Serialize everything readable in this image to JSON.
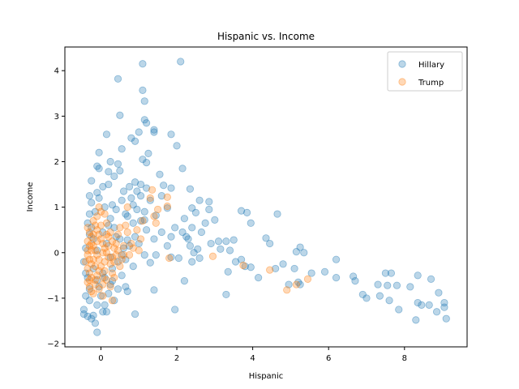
{
  "chart_data": {
    "type": "scatter",
    "title": "Hispanic vs. Income",
    "xlabel": "Hispanic",
    "ylabel": "Income",
    "xlim": [
      -0.95,
      9.65
    ],
    "ylim": [
      -2.07,
      4.52
    ],
    "xticks": [
      0,
      2,
      4,
      6,
      8
    ],
    "yticks": [
      -2,
      -1,
      0,
      1,
      2,
      3,
      4
    ],
    "grid": false,
    "legend_position": "upper right",
    "series": [
      {
        "name": "Hillary",
        "color": "#1f77b4",
        "alpha": 0.3,
        "points": [
          [
            1.1,
            4.15
          ],
          [
            2.1,
            4.2
          ],
          [
            0.45,
            3.82
          ],
          [
            1.1,
            3.57
          ],
          [
            1.15,
            3.33
          ],
          [
            0.5,
            3.02
          ],
          [
            1.15,
            2.92
          ],
          [
            1.2,
            2.85
          ],
          [
            1.4,
            2.7
          ],
          [
            1.4,
            2.65
          ],
          [
            1.0,
            2.65
          ],
          [
            0.15,
            2.6
          ],
          [
            1.85,
            2.6
          ],
          [
            0.8,
            2.52
          ],
          [
            0.9,
            2.45
          ],
          [
            2.0,
            2.35
          ],
          [
            0.55,
            2.28
          ],
          [
            1.25,
            2.18
          ],
          [
            -0.05,
            2.2
          ],
          [
            1.1,
            2.05
          ],
          [
            1.2,
            1.98
          ],
          [
            0.25,
            2.0
          ],
          [
            0.45,
            1.95
          ],
          [
            -0.1,
            1.9
          ],
          [
            -0.05,
            1.85
          ],
          [
            2.15,
            1.85
          ],
          [
            0.5,
            1.8
          ],
          [
            0.2,
            1.78
          ],
          [
            1.55,
            1.72
          ],
          [
            0.35,
            1.68
          ],
          [
            -0.25,
            1.58
          ],
          [
            0.9,
            1.55
          ],
          [
            1.65,
            1.48
          ],
          [
            0.75,
            1.45
          ],
          [
            1.2,
            1.42
          ],
          [
            1.85,
            1.42
          ],
          [
            2.35,
            1.4
          ],
          [
            0.95,
            1.35
          ],
          [
            -0.1,
            1.32
          ],
          [
            0.05,
            1.45
          ],
          [
            0.2,
            1.5
          ],
          [
            -0.3,
            1.25
          ],
          [
            1.05,
            1.25
          ],
          [
            1.6,
            1.25
          ],
          [
            2.6,
            1.15
          ],
          [
            2.85,
            1.12
          ],
          [
            1.3,
            1.15
          ],
          [
            0.85,
            1.05
          ],
          [
            0.3,
            1.05
          ],
          [
            1.75,
            0.98
          ],
          [
            2.4,
            0.98
          ],
          [
            2.85,
            0.95
          ],
          [
            3.7,
            0.92
          ],
          [
            3.85,
            0.88
          ],
          [
            4.65,
            0.85
          ],
          [
            2.5,
            0.88
          ],
          [
            1.15,
            0.9
          ],
          [
            1.45,
            0.82
          ],
          [
            0.7,
            0.8
          ],
          [
            2.2,
            0.75
          ],
          [
            3.0,
            0.72
          ],
          [
            2.75,
            0.65
          ],
          [
            3.95,
            0.65
          ],
          [
            1.05,
            0.7
          ],
          [
            1.15,
            0.72
          ],
          [
            2.4,
            0.55
          ],
          [
            2.15,
            0.45
          ],
          [
            1.95,
            0.55
          ],
          [
            1.6,
            0.45
          ],
          [
            2.65,
            0.45
          ],
          [
            1.85,
            0.35
          ],
          [
            2.25,
            0.35
          ],
          [
            4.35,
            0.32
          ],
          [
            1.4,
            0.3
          ],
          [
            0.7,
            0.28
          ],
          [
            2.3,
            0.3
          ],
          [
            3.1,
            0.25
          ],
          [
            3.3,
            0.25
          ],
          [
            3.5,
            0.28
          ],
          [
            2.9,
            0.2
          ],
          [
            2.35,
            0.15
          ],
          [
            1.75,
            0.15
          ],
          [
            4.45,
            0.2
          ],
          [
            5.25,
            0.12
          ],
          [
            2.55,
            0.08
          ],
          [
            3.15,
            0.08
          ],
          [
            3.4,
            0.05
          ],
          [
            5.15,
            0.02
          ],
          [
            2.45,
            0.0
          ],
          [
            5.35,
            0.0
          ],
          [
            1.15,
            -0.05
          ],
          [
            1.45,
            -0.05
          ],
          [
            1.85,
            -0.1
          ],
          [
            2.05,
            -0.12
          ],
          [
            2.6,
            -0.12
          ],
          [
            3.7,
            -0.15
          ],
          [
            6.2,
            -0.15
          ],
          [
            2.4,
            -0.2
          ],
          [
            3.55,
            -0.2
          ],
          [
            1.3,
            -0.22
          ],
          [
            4.8,
            -0.25
          ],
          [
            3.8,
            -0.3
          ],
          [
            3.95,
            -0.32
          ],
          [
            4.6,
            -0.35
          ],
          [
            5.1,
            -0.35
          ],
          [
            5.9,
            -0.42
          ],
          [
            3.35,
            -0.42
          ],
          [
            5.55,
            -0.45
          ],
          [
            7.5,
            -0.45
          ],
          [
            7.65,
            -0.45
          ],
          [
            8.35,
            -0.5
          ],
          [
            6.65,
            -0.52
          ],
          [
            4.15,
            -0.55
          ],
          [
            8.7,
            -0.58
          ],
          [
            6.2,
            -0.55
          ],
          [
            5.2,
            -0.65
          ],
          [
            5.25,
            -0.7
          ],
          [
            4.95,
            -0.7
          ],
          [
            6.7,
            -0.62
          ],
          [
            7.3,
            -0.7
          ],
          [
            7.55,
            -0.72
          ],
          [
            7.8,
            -0.72
          ],
          [
            8.15,
            -0.75
          ],
          [
            2.2,
            -0.62
          ],
          [
            6.9,
            -0.92
          ],
          [
            7.0,
            -1.0
          ],
          [
            7.35,
            -0.95
          ],
          [
            7.6,
            -1.05
          ],
          [
            8.9,
            -0.88
          ],
          [
            8.35,
            -1.1
          ],
          [
            8.45,
            -1.15
          ],
          [
            8.65,
            -1.15
          ],
          [
            9.05,
            -1.1
          ],
          [
            9.05,
            -1.2
          ],
          [
            7.85,
            -1.25
          ],
          [
            8.85,
            -1.3
          ],
          [
            8.3,
            -1.48
          ],
          [
            9.1,
            -1.45
          ],
          [
            3.3,
            -0.92
          ],
          [
            1.4,
            -0.82
          ],
          [
            0.9,
            -1.35
          ],
          [
            1.95,
            -1.25
          ],
          [
            0.65,
            -0.75
          ],
          [
            0.3,
            -0.62
          ],
          [
            -0.35,
            0.65
          ],
          [
            -0.3,
            0.4
          ],
          [
            -0.4,
            0.1
          ],
          [
            -0.45,
            -0.2
          ],
          [
            -0.35,
            -0.55
          ],
          [
            -0.4,
            -0.95
          ],
          [
            -0.45,
            -1.25
          ],
          [
            -0.45,
            -1.35
          ],
          [
            -0.35,
            -1.4
          ],
          [
            -0.25,
            -1.45
          ],
          [
            -0.15,
            -1.55
          ],
          [
            -0.1,
            -1.75
          ],
          [
            -0.2,
            -1.38
          ],
          [
            -0.1,
            -1.15
          ],
          [
            0.05,
            -1.3
          ],
          [
            0.15,
            -1.3
          ],
          [
            0.0,
            -0.95
          ],
          [
            0.2,
            -0.9
          ],
          [
            -0.05,
            -0.75
          ],
          [
            0.1,
            -0.55
          ],
          [
            0.3,
            -0.35
          ],
          [
            0.45,
            -0.2
          ],
          [
            0.55,
            -0.05
          ],
          [
            0.6,
            0.1
          ],
          [
            0.5,
            0.3
          ],
          [
            0.35,
            0.55
          ],
          [
            0.25,
            0.75
          ],
          [
            0.4,
            0.95
          ],
          [
            0.55,
            1.15
          ],
          [
            0.65,
            0.85
          ],
          [
            0.85,
            0.65
          ],
          [
            0.9,
            0.35
          ],
          [
            0.75,
            0.15
          ],
          [
            0.65,
            -0.15
          ],
          [
            0.85,
            -0.3
          ],
          [
            0.55,
            -0.5
          ],
          [
            0.45,
            -0.8
          ],
          [
            0.7,
            -0.85
          ],
          [
            0.35,
            -1.05
          ],
          [
            0.1,
            -1.15
          ],
          [
            -0.25,
            1.1
          ],
          [
            -0.15,
            0.9
          ],
          [
            -0.05,
            1.2
          ],
          [
            0.1,
            1.0
          ],
          [
            -0.3,
            0.85
          ],
          [
            0.2,
            0.6
          ],
          [
            0.05,
            0.45
          ],
          [
            -0.2,
            0.3
          ],
          [
            0.15,
            0.2
          ],
          [
            -0.1,
            0.05
          ],
          [
            0.25,
            -0.1
          ],
          [
            -0.2,
            -0.35
          ],
          [
            0.05,
            -0.45
          ],
          [
            0.25,
            -0.7
          ],
          [
            -0.3,
            -1.05
          ],
          [
            -0.1,
            -0.6
          ],
          [
            0.4,
            0.35
          ],
          [
            -0.25,
            0.55
          ],
          [
            -0.4,
            -0.45
          ],
          [
            -0.3,
            -0.8
          ],
          [
            1.0,
            0.2
          ],
          [
            1.2,
            0.5
          ],
          [
            0.95,
            0.95
          ],
          [
            0.8,
            1.2
          ],
          [
            1.05,
            1.5
          ],
          [
            0.6,
            1.35
          ]
        ]
      },
      {
        "name": "Trump",
        "color": "#ff7f0e",
        "alpha": 0.3,
        "points": [
          [
            1.35,
            1.38
          ],
          [
            1.3,
            1.2
          ],
          [
            1.75,
            1.22
          ],
          [
            1.75,
            1.02
          ],
          [
            1.5,
            0.95
          ],
          [
            0.7,
            1.0
          ],
          [
            1.4,
            0.8
          ],
          [
            1.45,
            0.65
          ],
          [
            1.1,
            0.7
          ],
          [
            0.65,
            0.6
          ],
          [
            0.95,
            0.5
          ],
          [
            0.5,
            0.55
          ],
          [
            0.45,
            0.4
          ],
          [
            0.7,
            0.45
          ],
          [
            1.05,
            0.3
          ],
          [
            0.8,
            0.2
          ],
          [
            0.6,
            0.15
          ],
          [
            0.45,
            0.05
          ],
          [
            0.75,
            -0.05
          ],
          [
            0.55,
            -0.15
          ],
          [
            0.35,
            -0.2
          ],
          [
            0.5,
            -0.3
          ],
          [
            0.3,
            -0.45
          ],
          [
            0.15,
            -0.6
          ],
          [
            0.35,
            -0.55
          ],
          [
            0.25,
            -0.75
          ],
          [
            0.3,
            -1.05
          ],
          [
            0.05,
            -0.95
          ],
          [
            -0.05,
            -0.8
          ],
          [
            -0.15,
            -0.7
          ],
          [
            1.8,
            -0.12
          ],
          [
            2.95,
            -0.08
          ],
          [
            3.75,
            -0.28
          ],
          [
            4.45,
            -0.38
          ],
          [
            4.9,
            -0.82
          ],
          [
            5.15,
            -0.7
          ],
          [
            5.45,
            -0.58
          ],
          [
            -0.35,
            0.55
          ],
          [
            -0.3,
            0.45
          ],
          [
            -0.25,
            0.35
          ],
          [
            -0.35,
            0.25
          ],
          [
            -0.3,
            0.15
          ],
          [
            -0.25,
            0.05
          ],
          [
            -0.35,
            -0.05
          ],
          [
            -0.3,
            -0.15
          ],
          [
            -0.25,
            -0.25
          ],
          [
            -0.35,
            -0.35
          ],
          [
            -0.3,
            -0.45
          ],
          [
            -0.25,
            -0.55
          ],
          [
            -0.35,
            -0.65
          ],
          [
            -0.3,
            -0.75
          ],
          [
            -0.2,
            -0.9
          ],
          [
            -0.15,
            0.6
          ],
          [
            -0.1,
            0.5
          ],
          [
            -0.05,
            0.4
          ],
          [
            0.0,
            0.3
          ],
          [
            0.05,
            0.2
          ],
          [
            0.1,
            0.1
          ],
          [
            0.15,
            0.0
          ],
          [
            0.2,
            -0.1
          ],
          [
            0.1,
            -0.2
          ],
          [
            0.0,
            -0.3
          ],
          [
            -0.05,
            -0.4
          ],
          [
            -0.1,
            -0.5
          ],
          [
            -0.15,
            -0.6
          ],
          [
            0.05,
            -0.7
          ],
          [
            0.2,
            0.35
          ],
          [
            0.25,
            0.45
          ],
          [
            0.3,
            0.25
          ],
          [
            0.35,
            0.1
          ],
          [
            0.4,
            -0.05
          ],
          [
            0.25,
            -0.25
          ],
          [
            -0.2,
            0.7
          ],
          [
            -0.1,
            0.8
          ],
          [
            0.0,
            0.9
          ],
          [
            0.1,
            0.85
          ],
          [
            -0.05,
            1.0
          ],
          [
            0.15,
            0.65
          ],
          [
            -0.2,
            0.15
          ],
          [
            -0.15,
            0.05
          ],
          [
            -0.1,
            -0.05
          ],
          [
            -0.2,
            -0.15
          ],
          [
            -0.15,
            -0.3
          ],
          [
            -0.05,
            -0.15
          ],
          [
            0.05,
            0.0
          ],
          [
            0.1,
            -0.4
          ],
          [
            -0.25,
            0.2
          ],
          [
            -0.35,
            0.05
          ],
          [
            -0.4,
            -0.2
          ],
          [
            -0.2,
            0.4
          ],
          [
            0.0,
            0.6
          ],
          [
            0.05,
            -0.55
          ],
          [
            0.15,
            0.4
          ],
          [
            -0.1,
            0.25
          ],
          [
            0.2,
            0.15
          ],
          [
            0.3,
            -0.1
          ],
          [
            -0.3,
            -0.6
          ],
          [
            -0.25,
            -0.85
          ],
          [
            0.4,
            0.2
          ],
          [
            0.6,
            -0.05
          ],
          [
            0.85,
            0.1
          ],
          [
            1.0,
            0.05
          ]
        ]
      }
    ]
  }
}
